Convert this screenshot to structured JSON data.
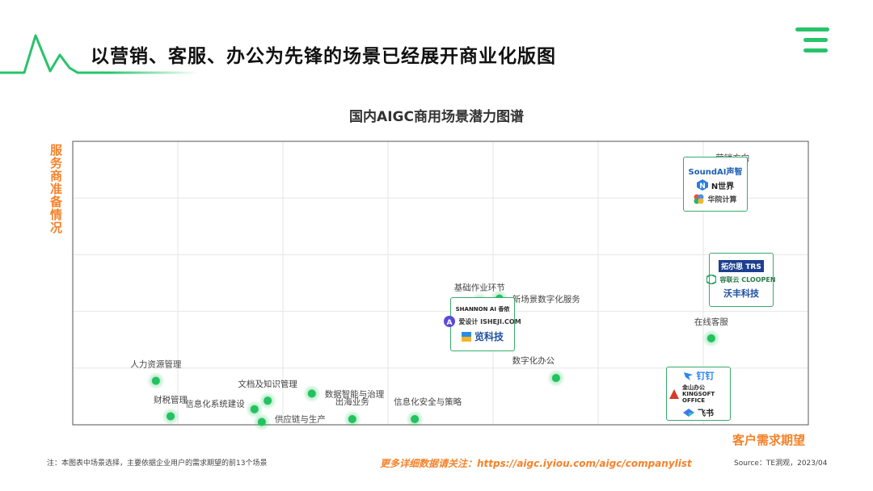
{
  "page": {
    "title": "以营销、客服、办公为先锋的场景已经展开商业化版图",
    "footnote": "注：本图表中场景选择，主要依据企业用户的需求期望的前13个场景",
    "more_info": "更多详细数据请关注：https://aigc.iyiou.com/aigc/companylist",
    "source": "Source：TE洞观，2023/04"
  },
  "colors": {
    "accent_green": "#27c36a",
    "dot_green": "#22c25e",
    "axis_label_orange": "#f5822a",
    "logo_border": "#3aaa6a"
  },
  "chart_data": {
    "type": "scatter",
    "title": "国内AIGC商用场景潜力图谱",
    "xlabel": "客户需求期望",
    "ylabel": "服务商准备情况",
    "grid": true,
    "xlim": [
      0,
      10
    ],
    "ylim": [
      0,
      10
    ],
    "points": [
      {
        "label": "营销方向",
        "x": 8.97,
        "y": 8.8
      },
      {
        "label": "基础作业环节",
        "x": 5.53,
        "y": 4.35
      },
      {
        "label": "新场景数字化服务",
        "x": 5.8,
        "y": 4.45
      },
      {
        "label": "在线客服",
        "x": 8.68,
        "y": 3.05
      },
      {
        "label": "数字化办公",
        "x": 6.57,
        "y": 1.65
      },
      {
        "label": "人力资源管理",
        "x": 1.13,
        "y": 1.55
      },
      {
        "label": "财税管理",
        "x": 1.33,
        "y": 0.3
      },
      {
        "label": "文档及知识管理",
        "x": 2.65,
        "y": 0.85
      },
      {
        "label": "信息化系统建设",
        "x": 2.47,
        "y": 0.55
      },
      {
        "label": "供应链与生产",
        "x": 2.57,
        "y": 0.1
      },
      {
        "label": "数据智能与治理",
        "x": 3.25,
        "y": 1.1
      },
      {
        "label": "出海业务",
        "x": 3.8,
        "y": 0.2
      },
      {
        "label": "信息化安全与策略",
        "x": 4.65,
        "y": 0.2
      }
    ]
  },
  "logo_groups": {
    "marketing": [
      "SoundAI声智",
      "N世界",
      "华院计算"
    ],
    "service": [
      "拓尔思 TRS",
      "容联云 CLOOPEN",
      "沃丰科技"
    ],
    "basic": [
      "SHANNON AI 香侬",
      "爱设计 ISHEJI.COM",
      "览科技"
    ],
    "office": [
      "钉钉",
      "金山办公 KINGSOFT OFFICE",
      "飞书"
    ]
  }
}
